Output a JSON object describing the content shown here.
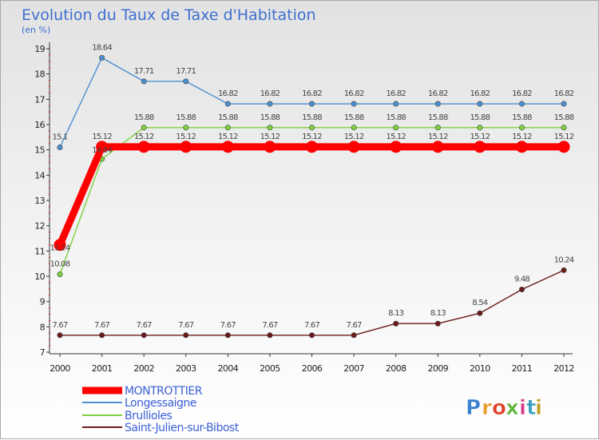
{
  "chart_data": {
    "type": "line",
    "title": "Evolution du Taux de Taxe d'Habitation",
    "subtitle": "(en %)",
    "x": [
      "2000",
      "2001",
      "2002",
      "2003",
      "2004",
      "2005",
      "2006",
      "2007",
      "2008",
      "2009",
      "2010",
      "2011",
      "2012"
    ],
    "ylim": [
      7,
      19
    ],
    "yticks": [
      7,
      8,
      9,
      10,
      11,
      12,
      13,
      14,
      15,
      16,
      17,
      18,
      19
    ],
    "grid": false,
    "legend_position": "bottom-left",
    "series": [
      {
        "name": "MONTROTTIER",
        "color": "#ff0000",
        "values": [
          11.24,
          15.12,
          15.12,
          15.12,
          15.12,
          15.12,
          15.12,
          15.12,
          15.12,
          15.12,
          15.12,
          15.12,
          15.12
        ],
        "labels": [
          "11.24",
          "15.12",
          "15.12",
          "15.12",
          "15.12",
          "15.12",
          "15.12",
          "15.12",
          "15.12",
          "15.12",
          "15.12",
          "15.12",
          "15.12"
        ]
      },
      {
        "name": "Longessaigne",
        "color": "#4a90d0",
        "values": [
          15.1,
          18.64,
          17.71,
          17.71,
          16.82,
          16.82,
          16.82,
          16.82,
          16.82,
          16.82,
          16.82,
          16.82,
          16.82
        ],
        "labels": [
          "15.1",
          "18.64",
          "17.71",
          "17.71",
          "16.82",
          "16.82",
          "16.82",
          "16.82",
          "16.82",
          "16.82",
          "16.82",
          "16.82",
          "16.82"
        ]
      },
      {
        "name": "Brullioles",
        "color": "#7ed040",
        "values": [
          10.08,
          14.64,
          15.88,
          15.88,
          15.88,
          15.88,
          15.88,
          15.88,
          15.88,
          15.88,
          15.88,
          15.88,
          15.88
        ],
        "labels": [
          "10.08",
          "14.64",
          "15.88",
          "15.88",
          "15.88",
          "15.88",
          "15.88",
          "15.88",
          "15.88",
          "15.88",
          "15.88",
          "15.88",
          "15.88"
        ]
      },
      {
        "name": "Saint-Julien-sur-Bibost",
        "color": "#6b1a1a",
        "values": [
          7.67,
          7.67,
          7.67,
          7.67,
          7.67,
          7.67,
          7.67,
          7.67,
          8.13,
          8.13,
          8.54,
          9.48,
          10.24
        ],
        "labels": [
          "7.67",
          "7.67",
          "7.67",
          "7.67",
          "7.67",
          "7.67",
          "7.67",
          "7.67",
          "8.13",
          "8.13",
          "8.54",
          "9.48",
          "10.24"
        ]
      }
    ]
  },
  "brand": "Proxiti"
}
